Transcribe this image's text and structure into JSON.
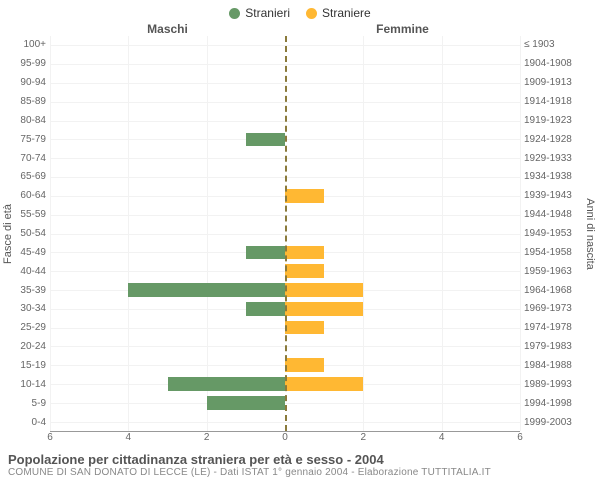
{
  "legend": {
    "male": {
      "label": "Stranieri",
      "color": "#669966"
    },
    "female": {
      "label": "Straniere",
      "color": "#ffb833"
    }
  },
  "headers": {
    "left": "Maschi",
    "right": "Femmine"
  },
  "axis_titles": {
    "left": "Fasce di età",
    "right": "Anni di nascita"
  },
  "chart": {
    "type": "population-pyramid",
    "xmax": 6,
    "xticks": [
      0,
      2,
      4,
      6
    ],
    "background_color": "#ffffff",
    "grid_color": "#f2f2f2",
    "center_line_color": "#8a7a3b",
    "bar_height_pct": 72,
    "rows": [
      {
        "age": "100+",
        "birth": "≤ 1903",
        "m": 0,
        "f": 0
      },
      {
        "age": "95-99",
        "birth": "1904-1908",
        "m": 0,
        "f": 0
      },
      {
        "age": "90-94",
        "birth": "1909-1913",
        "m": 0,
        "f": 0
      },
      {
        "age": "85-89",
        "birth": "1914-1918",
        "m": 0,
        "f": 0
      },
      {
        "age": "80-84",
        "birth": "1919-1923",
        "m": 0,
        "f": 0
      },
      {
        "age": "75-79",
        "birth": "1924-1928",
        "m": 1,
        "f": 0
      },
      {
        "age": "70-74",
        "birth": "1929-1933",
        "m": 0,
        "f": 0
      },
      {
        "age": "65-69",
        "birth": "1934-1938",
        "m": 0,
        "f": 0
      },
      {
        "age": "60-64",
        "birth": "1939-1943",
        "m": 0,
        "f": 1
      },
      {
        "age": "55-59",
        "birth": "1944-1948",
        "m": 0,
        "f": 0
      },
      {
        "age": "50-54",
        "birth": "1949-1953",
        "m": 0,
        "f": 0
      },
      {
        "age": "45-49",
        "birth": "1954-1958",
        "m": 1,
        "f": 1
      },
      {
        "age": "40-44",
        "birth": "1959-1963",
        "m": 0,
        "f": 1
      },
      {
        "age": "35-39",
        "birth": "1964-1968",
        "m": 4,
        "f": 2
      },
      {
        "age": "30-34",
        "birth": "1969-1973",
        "m": 1,
        "f": 2
      },
      {
        "age": "25-29",
        "birth": "1974-1978",
        "m": 0,
        "f": 1
      },
      {
        "age": "20-24",
        "birth": "1979-1983",
        "m": 0,
        "f": 0
      },
      {
        "age": "15-19",
        "birth": "1984-1988",
        "m": 0,
        "f": 1
      },
      {
        "age": "10-14",
        "birth": "1989-1993",
        "m": 3,
        "f": 2
      },
      {
        "age": "5-9",
        "birth": "1994-1998",
        "m": 2,
        "f": 0
      },
      {
        "age": "0-4",
        "birth": "1999-2003",
        "m": 0,
        "f": 0
      }
    ]
  },
  "footer": {
    "title": "Popolazione per cittadinanza straniera per età e sesso - 2004",
    "subtitle": "COMUNE DI SAN DONATO DI LECCE (LE) - Dati ISTAT 1° gennaio 2004 - Elaborazione TUTTITALIA.IT"
  }
}
